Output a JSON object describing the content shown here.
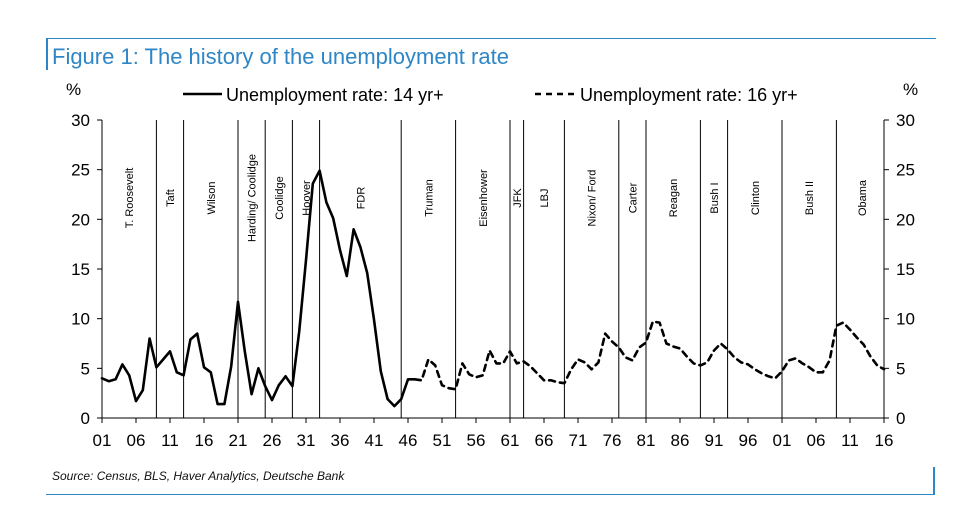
{
  "title": "Figure 1: The history of the unemployment rate",
  "source": "Source: Census, BLS, Haver Analytics, Deutsche Bank",
  "colors": {
    "accent": "#2f86c6",
    "series": "#000000"
  },
  "chart_data": {
    "type": "line",
    "title": "Figure 1: The history of the unemployment rate",
    "ylabel_left": "%",
    "ylabel_right": "%",
    "xlim": [
      1901,
      2016
    ],
    "ylim": [
      0,
      30
    ],
    "y_ticks": [
      0,
      5,
      10,
      15,
      20,
      25,
      30
    ],
    "x_ticks": [
      {
        "year": 1901,
        "label": "01"
      },
      {
        "year": 1906,
        "label": "06"
      },
      {
        "year": 1911,
        "label": "11"
      },
      {
        "year": 1916,
        "label": "16"
      },
      {
        "year": 1921,
        "label": "21"
      },
      {
        "year": 1926,
        "label": "26"
      },
      {
        "year": 1931,
        "label": "31"
      },
      {
        "year": 1936,
        "label": "36"
      },
      {
        "year": 1941,
        "label": "41"
      },
      {
        "year": 1946,
        "label": "46"
      },
      {
        "year": 1951,
        "label": "51"
      },
      {
        "year": 1956,
        "label": "56"
      },
      {
        "year": 1961,
        "label": "61"
      },
      {
        "year": 1966,
        "label": "66"
      },
      {
        "year": 1971,
        "label": "71"
      },
      {
        "year": 1976,
        "label": "76"
      },
      {
        "year": 1981,
        "label": "81"
      },
      {
        "year": 1986,
        "label": "86"
      },
      {
        "year": 1991,
        "label": "91"
      },
      {
        "year": 1996,
        "label": "96"
      },
      {
        "year": 2001,
        "label": "01"
      },
      {
        "year": 2006,
        "label": "06"
      },
      {
        "year": 2011,
        "label": "11"
      },
      {
        "year": 2016,
        "label": "16"
      }
    ],
    "legend": [
      "Unemployment rate: 14 yr+",
      "Unemployment rate: 16 yr+"
    ],
    "series": [
      {
        "name": "Unemployment rate: 14 yr+",
        "style": "solid",
        "x": [
          1901,
          1902,
          1903,
          1904,
          1905,
          1906,
          1907,
          1908,
          1909,
          1910,
          1911,
          1912,
          1913,
          1914,
          1915,
          1916,
          1917,
          1918,
          1919,
          1920,
          1921,
          1922,
          1923,
          1924,
          1925,
          1926,
          1927,
          1928,
          1929,
          1930,
          1931,
          1932,
          1933,
          1934,
          1935,
          1936,
          1937,
          1938,
          1939,
          1940,
          1941,
          1942,
          1943,
          1944,
          1945,
          1946,
          1947
        ],
        "values": [
          4.0,
          3.7,
          3.9,
          5.4,
          4.3,
          1.7,
          2.8,
          8.0,
          5.1,
          5.9,
          6.7,
          4.6,
          4.3,
          7.9,
          8.5,
          5.1,
          4.6,
          1.4,
          1.4,
          5.2,
          11.7,
          6.7,
          2.4,
          5.0,
          3.2,
          1.8,
          3.3,
          4.2,
          3.2,
          8.7,
          15.9,
          23.6,
          24.9,
          21.7,
          20.1,
          16.9,
          14.3,
          19.0,
          17.2,
          14.6,
          9.9,
          4.7,
          1.9,
          1.2,
          1.9,
          3.9,
          3.9
        ]
      },
      {
        "name": "Unemployment rate: 16 yr+",
        "style": "dashed",
        "x": [
          1947,
          1948,
          1949,
          1950,
          1951,
          1952,
          1953,
          1954,
          1955,
          1956,
          1957,
          1958,
          1959,
          1960,
          1961,
          1962,
          1963,
          1964,
          1965,
          1966,
          1967,
          1968,
          1969,
          1970,
          1971,
          1972,
          1973,
          1974,
          1975,
          1976,
          1977,
          1978,
          1979,
          1980,
          1981,
          1982,
          1983,
          1984,
          1985,
          1986,
          1987,
          1988,
          1989,
          1990,
          1991,
          1992,
          1993,
          1994,
          1995,
          1996,
          1997,
          1998,
          1999,
          2000,
          2001,
          2002,
          2003,
          2004,
          2005,
          2006,
          2007,
          2008,
          2009,
          2010,
          2011,
          2012,
          2013,
          2014,
          2015,
          2016
        ],
        "values": [
          3.9,
          3.8,
          5.9,
          5.3,
          3.3,
          3.0,
          2.9,
          5.5,
          4.4,
          4.1,
          4.3,
          6.8,
          5.5,
          5.5,
          6.7,
          5.5,
          5.7,
          5.2,
          4.5,
          3.8,
          3.8,
          3.6,
          3.5,
          4.9,
          5.9,
          5.6,
          4.9,
          5.6,
          8.5,
          7.7,
          7.1,
          6.1,
          5.8,
          7.1,
          7.6,
          9.7,
          9.6,
          7.5,
          7.2,
          7.0,
          6.2,
          5.5,
          5.3,
          5.6,
          6.8,
          7.5,
          6.9,
          6.1,
          5.6,
          5.4,
          4.9,
          4.5,
          4.2,
          4.0,
          4.7,
          5.8,
          6.0,
          5.5,
          5.1,
          4.6,
          4.6,
          5.8,
          9.3,
          9.6,
          8.9,
          8.1,
          7.4,
          6.2,
          5.3,
          4.9
        ]
      }
    ],
    "presidents": [
      {
        "name": "T. Roosevelt",
        "start": 1901,
        "end": 1909
      },
      {
        "name": "Taft",
        "start": 1909,
        "end": 1913
      },
      {
        "name": "Wilson",
        "start": 1913,
        "end": 1921
      },
      {
        "name": "Harding/ Coolidge",
        "start": 1921,
        "end": 1925
      },
      {
        "name": "Coolidge",
        "start": 1925,
        "end": 1929
      },
      {
        "name": "Hoover",
        "start": 1929,
        "end": 1933
      },
      {
        "name": "FDR",
        "start": 1933,
        "end": 1945
      },
      {
        "name": "Truman",
        "start": 1945,
        "end": 1953
      },
      {
        "name": "Eisenhower",
        "start": 1953,
        "end": 1961
      },
      {
        "name": "JFK",
        "start": 1961,
        "end": 1963
      },
      {
        "name": "LBJ",
        "start": 1963,
        "end": 1969
      },
      {
        "name": "Nixon/ Ford",
        "start": 1969,
        "end": 1977
      },
      {
        "name": "Carter",
        "start": 1977,
        "end": 1981
      },
      {
        "name": "Reagan",
        "start": 1981,
        "end": 1989
      },
      {
        "name": "Bush I",
        "start": 1989,
        "end": 1993
      },
      {
        "name": "Clinton",
        "start": 1993,
        "end": 2001
      },
      {
        "name": "Bush II",
        "start": 2001,
        "end": 2009
      },
      {
        "name": "Obama",
        "start": 2009,
        "end": 2017
      }
    ]
  }
}
